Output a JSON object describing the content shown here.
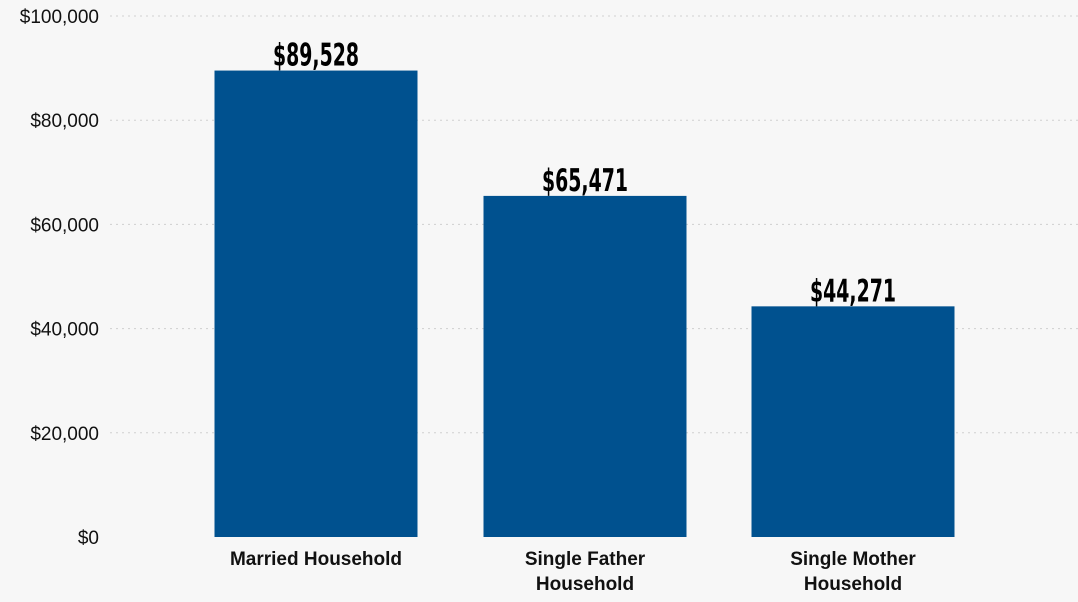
{
  "chart_data": {
    "type": "bar",
    "categories": [
      "Married Household",
      "Single Father Household",
      "Single Mother Household"
    ],
    "category_lines": [
      [
        "Married Household"
      ],
      [
        "Single Father",
        "Household"
      ],
      [
        "Single Mother",
        "Household"
      ]
    ],
    "values": [
      89528,
      65471,
      44271
    ],
    "data_labels": [
      "$89,528",
      "$65,471",
      "$44,271"
    ],
    "title": "",
    "xlabel": "",
    "ylabel": "",
    "ylim": [
      0,
      100000
    ],
    "y_ticks": [
      0,
      20000,
      40000,
      60000,
      80000,
      100000
    ],
    "y_tick_labels": [
      "$0",
      "$20,000",
      "$40,000",
      "$60,000",
      "$80,000",
      "$100,000"
    ],
    "grid": true,
    "legend": "none",
    "bar_color": "#00518f",
    "background_color": "#f7f7f7"
  }
}
